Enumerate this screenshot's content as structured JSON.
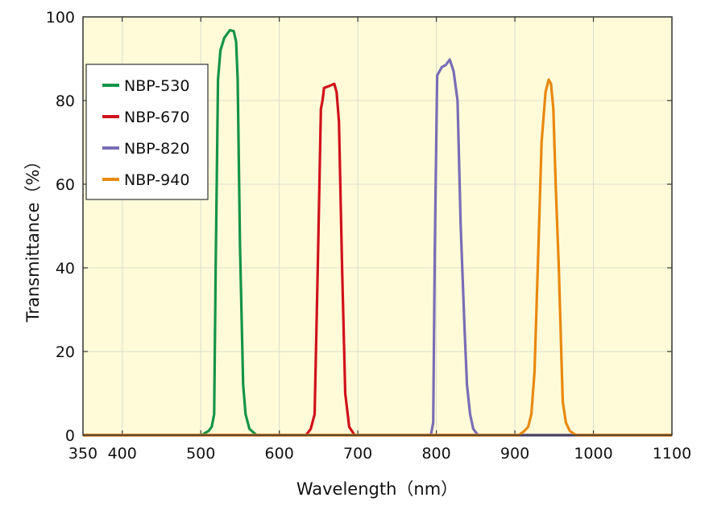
{
  "chart_data": {
    "type": "line",
    "title": "",
    "xlabel": "Wavelength（nm）",
    "ylabel": "Transmittance（%）",
    "xlim": [
      350,
      1100
    ],
    "ylim": [
      0,
      100
    ],
    "xticks": [
      350,
      400,
      500,
      600,
      700,
      800,
      900,
      1000,
      1100
    ],
    "yticks": [
      0,
      20,
      40,
      60,
      80,
      100
    ],
    "grid": true,
    "legend_position": "top-left",
    "background_color": "#fffbd9",
    "series": [
      {
        "name": "NBP-530",
        "color": "#159447",
        "x": [
          350,
          501,
          510,
          514,
          517,
          519,
          522,
          525,
          530,
          537,
          542,
          545,
          547,
          550,
          554,
          557,
          562,
          571,
          1100
        ],
        "y": [
          0,
          0,
          1,
          2,
          5,
          40,
          85,
          92,
          95,
          96.8,
          96.6,
          94,
          85,
          45,
          12,
          5,
          1.5,
          0,
          0
        ]
      },
      {
        "name": "NBP-670",
        "color": "#d0121b",
        "x": [
          350,
          634,
          640,
          645,
          649,
          653,
          655,
          657,
          664,
          670,
          673,
          676,
          680,
          684,
          689,
          696,
          1100
        ],
        "y": [
          0,
          0,
          1.5,
          5,
          40,
          78,
          80,
          83,
          83.5,
          84,
          82,
          75,
          40,
          10,
          2,
          0,
          0
        ]
      },
      {
        "name": "NBP-820",
        "color": "#7a6db5",
        "x": [
          350,
          793,
          796,
          798,
          801,
          807,
          812,
          817,
          822,
          827,
          831,
          836,
          839,
          843,
          847,
          853,
          1100
        ],
        "y": [
          0,
          0,
          3,
          45,
          86,
          88,
          88.5,
          89.8,
          87,
          80,
          50,
          25,
          12,
          5,
          1.5,
          0,
          0
        ]
      },
      {
        "name": "NBP-940",
        "color": "#e8890f",
        "x": [
          350,
          905,
          912,
          917,
          921,
          925,
          930,
          934,
          939,
          943,
          946,
          949,
          952,
          956,
          959,
          961,
          965,
          970,
          978,
          1100
        ],
        "y": [
          0,
          0,
          1,
          2,
          5,
          15,
          45,
          70,
          82,
          85,
          84,
          78,
          60,
          40,
          20,
          8,
          3,
          1,
          0,
          0
        ]
      }
    ]
  }
}
